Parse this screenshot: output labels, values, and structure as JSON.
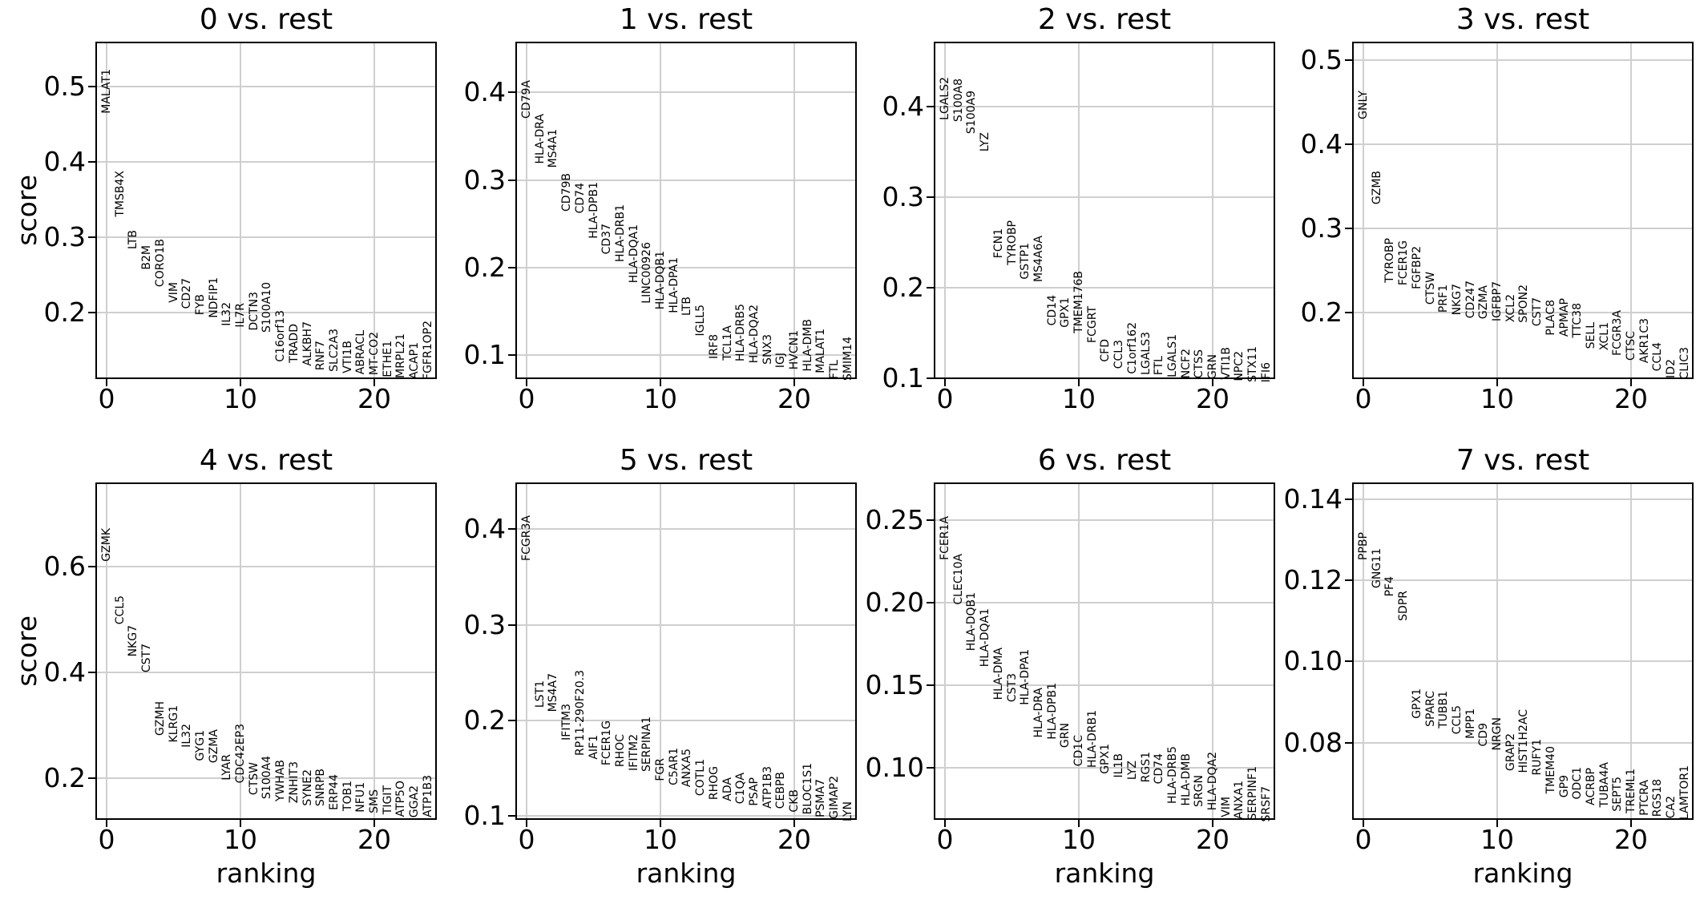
{
  "ylabel": "score",
  "xlabel": "ranking",
  "xtick_labels": [
    "0",
    "10",
    "20"
  ],
  "chart_data": [
    {
      "type": "scatter",
      "title": "0 vs. rest",
      "xlabel": "ranking",
      "ylabel": "score",
      "xticks": [
        0,
        10,
        20
      ],
      "xlim": [
        -0.84,
        24.67
      ],
      "ylim": [
        0.112,
        0.56
      ],
      "yticks": [
        0.2,
        0.3,
        0.4,
        0.5
      ],
      "ytick_labels": [
        "0.2",
        "0.3",
        "0.4",
        "0.5"
      ],
      "grid": true,
      "genes": [
        "MALAT1",
        "TMSB4X",
        "LTB",
        "B2M",
        "CORO1B",
        "VIM",
        "CD27",
        "FYB",
        "NDFIP1",
        "IL32",
        "IL7R",
        "DCTN3",
        "S100A10",
        "C16orf13",
        "TRADD",
        "ALKBH7",
        "RNF7",
        "SLC2A3",
        "VTI1B",
        "ABRACL",
        "MT-CO2",
        "ETHE1",
        "MRPL21",
        "ACAP1",
        "FGFR1OP2"
      ],
      "scores": [
        0.465,
        0.327,
        0.284,
        0.257,
        0.234,
        0.213,
        0.205,
        0.197,
        0.193,
        0.182,
        0.181,
        0.176,
        0.174,
        0.135,
        0.133,
        0.129,
        0.124,
        0.122,
        0.12,
        0.118,
        0.117,
        0.115,
        0.113,
        0.112,
        0.1115
      ]
    },
    {
      "type": "scatter",
      "title": "1 vs. rest",
      "xlabel": "ranking",
      "ylabel": "score",
      "xticks": [
        0,
        10,
        20
      ],
      "xlim": [
        -0.84,
        24.67
      ],
      "ylim": [
        0.0726,
        0.458
      ],
      "yticks": [
        0.1,
        0.2,
        0.3,
        0.4
      ],
      "ytick_labels": [
        "0.1",
        "0.2",
        "0.3",
        "0.4"
      ],
      "grid": true,
      "genes": [
        "CD79A",
        "HLA-DRA",
        "MS4A1",
        "CD79B",
        "CD74",
        "HLA-DPB1",
        "CD37",
        "HLA-DRB1",
        "HLA-DQA1",
        "LINC00926",
        "HLA-DQB1",
        "HLA-DPA1",
        "LTB",
        "IGLL5",
        "IRF8",
        "TCL1A",
        "HLA-DRB5",
        "HLA-DQA2",
        "SNX3",
        "IGJ",
        "HVCN1",
        "HLA-DMB",
        "MALAT1",
        "FTL",
        "SMIM14"
      ],
      "scores": [
        0.37,
        0.318,
        0.314,
        0.264,
        0.262,
        0.233,
        0.215,
        0.206,
        0.182,
        0.159,
        0.152,
        0.148,
        0.145,
        0.122,
        0.096,
        0.094,
        0.093,
        0.091,
        0.089,
        0.085,
        0.083,
        0.081,
        0.079,
        0.072,
        0.071
      ]
    },
    {
      "type": "scatter",
      "title": "2 vs. rest",
      "xlabel": "ranking",
      "ylabel": "score",
      "xticks": [
        0,
        10,
        20
      ],
      "xlim": [
        -0.84,
        24.67
      ],
      "ylim": [
        0.0991,
        0.4717
      ],
      "yticks": [
        0.1,
        0.2,
        0.3,
        0.4
      ],
      "ytick_labels": [
        "0.1",
        "0.2",
        "0.3",
        "0.4"
      ],
      "grid": true,
      "genes": [
        "LGALS2",
        "S100A8",
        "S100A9",
        "LYZ",
        "FCN1",
        "TYROBP",
        "GSTP1",
        "MS4A6A",
        "CD14",
        "GPX1",
        "TMEM176B",
        "FCGRT",
        "CFD",
        "CCL3",
        "C1orf162",
        "LGALS3",
        "FTL",
        "LGALS1",
        "NCF2",
        "CTSS",
        "GRN",
        "VTI1B",
        "NPC2",
        "STX11",
        "IFI6"
      ],
      "scores": [
        0.385,
        0.383,
        0.37,
        0.35,
        0.233,
        0.225,
        0.209,
        0.206,
        0.158,
        0.156,
        0.15,
        0.139,
        0.118,
        0.11,
        0.105,
        0.104,
        0.103,
        0.101,
        0.1,
        0.0995,
        0.099,
        0.098,
        0.097,
        0.096,
        0.0955
      ]
    },
    {
      "type": "scatter",
      "title": "3 vs. rest",
      "xlabel": "ranking",
      "ylabel": "score",
      "xticks": [
        0,
        10,
        20
      ],
      "xlim": [
        -0.84,
        24.67
      ],
      "ylim": [
        0.121,
        0.522
      ],
      "yticks": [
        0.2,
        0.3,
        0.4,
        0.5
      ],
      "ytick_labels": [
        "0.2",
        "0.3",
        "0.4",
        "0.5"
      ],
      "grid": true,
      "genes": [
        "GNLY",
        "GZMB",
        "TYROBP",
        "FCER1G",
        "FGFBP2",
        "CTSW",
        "PRF1",
        "NKG7",
        "CD247",
        "GZMA",
        "IGFBP7",
        "XCL2",
        "SPON2",
        "CST7",
        "PLAC8",
        "APMAP",
        "TTC38",
        "SELL",
        "XCL1",
        "FCGR3A",
        "CTSC",
        "AKR1C3",
        "CCL4",
        "ID2",
        "CLIC3"
      ],
      "scores": [
        0.43,
        0.329,
        0.235,
        0.232,
        0.228,
        0.21,
        0.2,
        0.197,
        0.193,
        0.192,
        0.19,
        0.189,
        0.188,
        0.184,
        0.173,
        0.171,
        0.17,
        0.157,
        0.155,
        0.149,
        0.143,
        0.14,
        0.13,
        0.122,
        0.1205
      ]
    },
    {
      "type": "scatter",
      "title": "4 vs. rest",
      "xlabel": "ranking",
      "ylabel": "score",
      "xticks": [
        0,
        10,
        20
      ],
      "xlim": [
        -0.84,
        24.67
      ],
      "ylim": [
        0.121,
        0.759
      ],
      "yticks": [
        0.2,
        0.4,
        0.6
      ],
      "ytick_labels": [
        "0.2",
        "0.4",
        "0.6"
      ],
      "grid": true,
      "genes": [
        "GZMK",
        "CCL5",
        "NKG7",
        "CST7",
        "GZMH",
        "KLRG1",
        "IL32",
        "GYG1",
        "GZMA",
        "LYAR",
        "CDC42EP3",
        "CTSW",
        "S100A4",
        "YWHAB",
        "ZNHIT3",
        "SYNE2",
        "SNRPB",
        "ERP44",
        "TOB1",
        "NFU1",
        "SMS",
        "TIGIT",
        "ATP5O",
        "GGA2",
        "ATP1B3"
      ],
      "scores": [
        0.61,
        0.49,
        0.43,
        0.4,
        0.28,
        0.268,
        0.258,
        0.232,
        0.228,
        0.196,
        0.19,
        0.168,
        0.16,
        0.156,
        0.152,
        0.148,
        0.146,
        0.14,
        0.138,
        0.135,
        0.133,
        0.132,
        0.127,
        0.126,
        0.125
      ]
    },
    {
      "type": "scatter",
      "title": "5 vs. rest",
      "xlabel": "ranking",
      "ylabel": "score",
      "xticks": [
        0,
        10,
        20
      ],
      "xlim": [
        -0.84,
        24.67
      ],
      "ylim": [
        0.0958,
        0.449
      ],
      "yticks": [
        0.1,
        0.2,
        0.3,
        0.4
      ],
      "ytick_labels": [
        "0.1",
        "0.2",
        "0.3",
        "0.4"
      ],
      "grid": true,
      "genes": [
        "FCGR3A",
        "LST1",
        "MS4A7",
        "IFITM3",
        "RP11-290F20.3",
        "AIF1",
        "FCER1G",
        "RHOC",
        "IFITM2",
        "SERPINA1",
        "FGR",
        "C5AR1",
        "ANXA5",
        "COTL1",
        "RHOG",
        "ADA",
        "C1QA",
        "PSAP",
        "ATP1B3",
        "CEBPB",
        "CKB",
        "BLOC1S1",
        "PSMA7",
        "GIMAP2",
        "LYN"
      ],
      "scores": [
        0.367,
        0.213,
        0.209,
        0.179,
        0.163,
        0.159,
        0.153,
        0.151,
        0.147,
        0.146,
        0.136,
        0.132,
        0.13,
        0.121,
        0.117,
        0.115,
        0.112,
        0.11,
        0.108,
        0.107,
        0.104,
        0.101,
        0.098,
        0.097,
        0.094
      ]
    },
    {
      "type": "scatter",
      "title": "6 vs. rest",
      "xlabel": "ranking",
      "ylabel": "score",
      "xticks": [
        0,
        10,
        20
      ],
      "xlim": [
        -0.84,
        24.67
      ],
      "ylim": [
        0.0684,
        0.273
      ],
      "yticks": [
        0.1,
        0.15,
        0.2,
        0.25
      ],
      "ytick_labels": [
        "0.10",
        "0.15",
        "0.20",
        "0.25"
      ],
      "grid": true,
      "genes": [
        "FCER1A",
        "CLEC10A",
        "HLA-DQB1",
        "HLA-DQA1",
        "HLA-DMA",
        "CST3",
        "HLA-DPA1",
        "HLA-DRA",
        "HLA-DPB1",
        "GRN",
        "CD1C",
        "HLA-DRB1",
        "GPX1",
        "IL1B",
        "LYZ",
        "RGS1",
        "CD74",
        "HLA-DRB5",
        "HLA-DMB",
        "SRGN",
        "HLA-DQA2",
        "VIM",
        "ANXA1",
        "SERPINF1",
        "SRSF7"
      ],
      "scores": [
        0.226,
        0.199,
        0.171,
        0.161,
        0.141,
        0.14,
        0.138,
        0.118,
        0.117,
        0.112,
        0.101,
        0.1,
        0.096,
        0.094,
        0.0925,
        0.091,
        0.09,
        0.078,
        0.077,
        0.076,
        0.074,
        0.07,
        0.069,
        0.068,
        0.067
      ]
    },
    {
      "type": "scatter",
      "title": "7 vs. rest",
      "xlabel": "ranking",
      "ylabel": "score",
      "xticks": [
        0,
        10,
        20
      ],
      "xlim": [
        -0.84,
        24.67
      ],
      "ylim": [
        0.061,
        0.1441
      ],
      "yticks": [
        0.08,
        0.1,
        0.12,
        0.14
      ],
      "ytick_labels": [
        "0.08",
        "0.10",
        "0.12",
        "0.14"
      ],
      "grid": true,
      "genes": [
        "PPBP",
        "GNG11",
        "PF4",
        "SDPR",
        "GPX1",
        "SPARC",
        "TUBB1",
        "CCL5",
        "MPP1",
        "CD9",
        "NRGN",
        "GRAP2",
        "HIST1H2AC",
        "RUFY1",
        "TMEM40",
        "GP9",
        "ODC1",
        "ACRBP",
        "TUBA4A",
        "SEPT5",
        "TREML1",
        "PTCRA",
        "RGS18",
        "CA2",
        "LAMTOR1"
      ],
      "scores": [
        0.125,
        0.118,
        0.116,
        0.11,
        0.086,
        0.084,
        0.0835,
        0.082,
        0.081,
        0.079,
        0.078,
        0.073,
        0.0725,
        0.072,
        0.0675,
        0.0665,
        0.066,
        0.0645,
        0.064,
        0.063,
        0.0625,
        0.062,
        0.0617,
        0.0613,
        0.061
      ]
    }
  ]
}
